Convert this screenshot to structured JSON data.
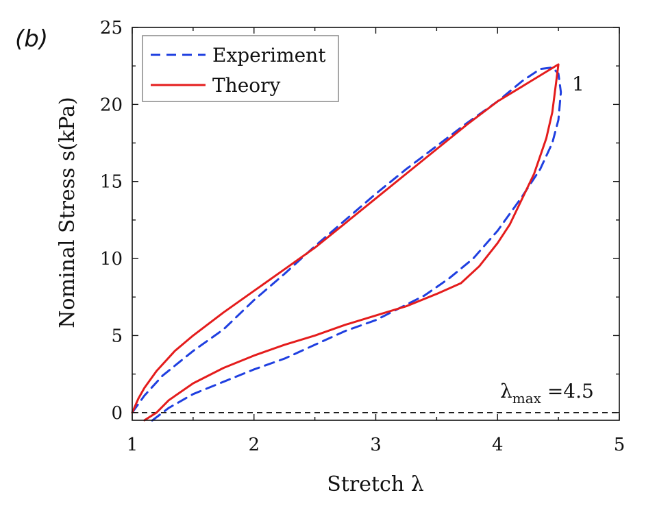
{
  "panel_label": "(b)",
  "chart_data": {
    "type": "line",
    "xlabel": "Stretch λ",
    "ylabel": "Nominal Stress s(kPa)",
    "xlim": [
      1,
      5
    ],
    "ylim": [
      -0.5,
      25
    ],
    "xticks": [
      1,
      2,
      3,
      4,
      5
    ],
    "yticks": [
      0,
      5,
      10,
      15,
      20,
      25
    ],
    "grid": false,
    "legend_position": "top-left",
    "annotations": [
      {
        "text": "1",
        "x": 4.75,
        "y": 21.3
      },
      {
        "text": "λmax =4.5",
        "x": 4.35,
        "y": 1.3
      }
    ],
    "reference_line": {
      "y": 0,
      "style": "dashed",
      "color": "#111111"
    },
    "series": [
      {
        "name": "Experiment",
        "color": "#1f3fe0",
        "style": "dashed",
        "points": [
          [
            1.0,
            0.0
          ],
          [
            1.1,
            1.1
          ],
          [
            1.25,
            2.4
          ],
          [
            1.5,
            4.0
          ],
          [
            1.75,
            5.4
          ],
          [
            2.0,
            7.3
          ],
          [
            2.25,
            9.0
          ],
          [
            2.5,
            10.8
          ],
          [
            2.75,
            12.5
          ],
          [
            3.0,
            14.2
          ],
          [
            3.25,
            15.8
          ],
          [
            3.5,
            17.3
          ],
          [
            3.75,
            18.8
          ],
          [
            4.0,
            20.2
          ],
          [
            4.2,
            21.5
          ],
          [
            4.35,
            22.3
          ],
          [
            4.45,
            22.4
          ],
          [
            4.5,
            22.0
          ],
          [
            4.52,
            20.8
          ],
          [
            4.5,
            19.0
          ],
          [
            4.45,
            17.5
          ],
          [
            4.35,
            15.8
          ],
          [
            4.2,
            14.0
          ],
          [
            4.0,
            11.8
          ],
          [
            3.8,
            10.0
          ],
          [
            3.6,
            8.7
          ],
          [
            3.4,
            7.6
          ],
          [
            3.2,
            6.8
          ],
          [
            3.0,
            6.0
          ],
          [
            2.75,
            5.3
          ],
          [
            2.5,
            4.4
          ],
          [
            2.25,
            3.5
          ],
          [
            2.0,
            2.8
          ],
          [
            1.75,
            2.0
          ],
          [
            1.5,
            1.2
          ],
          [
            1.3,
            0.3
          ],
          [
            1.15,
            -0.6
          ]
        ]
      },
      {
        "name": "Theory",
        "color": "#e41c1c",
        "style": "solid",
        "points": [
          [
            1.0,
            0.0
          ],
          [
            1.05,
            0.9
          ],
          [
            1.1,
            1.6
          ],
          [
            1.2,
            2.7
          ],
          [
            1.35,
            4.0
          ],
          [
            1.5,
            5.0
          ],
          [
            1.75,
            6.5
          ],
          [
            2.0,
            7.9
          ],
          [
            2.25,
            9.3
          ],
          [
            2.5,
            10.7
          ],
          [
            2.75,
            12.3
          ],
          [
            3.0,
            13.9
          ],
          [
            3.25,
            15.5
          ],
          [
            3.5,
            17.1
          ],
          [
            3.75,
            18.7
          ],
          [
            4.0,
            20.2
          ],
          [
            4.25,
            21.4
          ],
          [
            4.5,
            22.6
          ],
          [
            4.45,
            19.5
          ],
          [
            4.4,
            17.8
          ],
          [
            4.3,
            15.5
          ],
          [
            4.1,
            12.2
          ],
          [
            4.0,
            11.0
          ],
          [
            3.85,
            9.5
          ],
          [
            3.7,
            8.4
          ],
          [
            3.5,
            7.7
          ],
          [
            3.25,
            6.9
          ],
          [
            3.0,
            6.3
          ],
          [
            2.75,
            5.7
          ],
          [
            2.5,
            5.0
          ],
          [
            2.25,
            4.4
          ],
          [
            2.0,
            3.7
          ],
          [
            1.75,
            2.9
          ],
          [
            1.5,
            1.9
          ],
          [
            1.3,
            0.8
          ],
          [
            1.2,
            0.0
          ],
          [
            1.1,
            -0.5
          ]
        ]
      }
    ]
  }
}
